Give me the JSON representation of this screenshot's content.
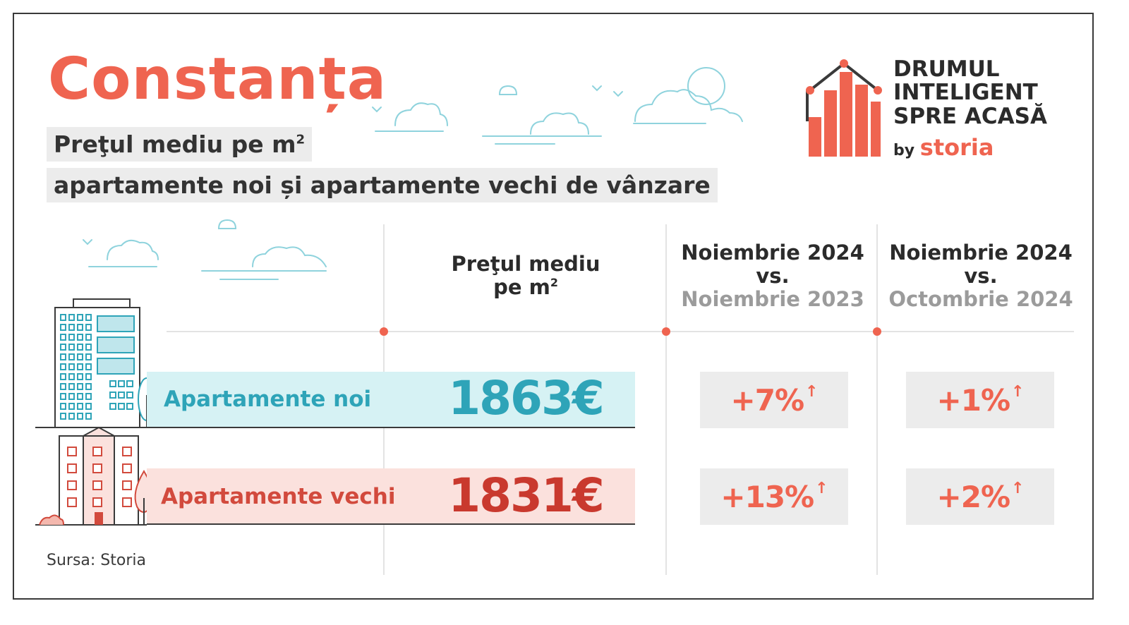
{
  "title": "Constanța",
  "subtitle": {
    "line1_text": "Preţul mediu pe m",
    "line1_sup": "2",
    "line2": "apartamente noi și apartamente vechi de vânzare"
  },
  "logo": {
    "line1": "DRUMUL",
    "line2": "INTELIGENT",
    "line3": "SPRE ACASĂ",
    "by": "by",
    "brand": "storia"
  },
  "columns": {
    "price": {
      "line1": "Preţul mediu",
      "line2_text": "pe m",
      "line2_sup": "2"
    },
    "yoy": {
      "line1": "Noiembrie 2024",
      "line2": "vs.",
      "line3": "Noiembrie 2023"
    },
    "mom": {
      "line1": "Noiembrie 2024",
      "line2": "vs.",
      "line3": "Octombrie 2024"
    }
  },
  "rows": [
    {
      "label": "Apartamente noi",
      "price": "1863€",
      "yoy": "+7%",
      "mom": "+1%"
    },
    {
      "label": "Apartamente vechi",
      "price": "1831€",
      "yoy": "+13%",
      "mom": "+2%"
    }
  ],
  "arrow_glyph": "↑",
  "source": "Sursa: Storia",
  "colors": {
    "accent": "#ef6450",
    "new": "#2ea4b8",
    "new_band": "#d6f2f4",
    "old": "#c9392e",
    "old_band": "#fbe1dd",
    "cell": "#ececec"
  },
  "chart_data": {
    "type": "table",
    "title": "Constanța",
    "columns": [
      "Preţul mediu pe m2",
      "Noiembrie 2024 vs. Noiembrie 2023",
      "Noiembrie 2024 vs. Octombrie 2024"
    ],
    "rows": [
      {
        "category": "Apartamente noi",
        "price_eur_per_m2": 1863,
        "change_yoy_pct": 7,
        "change_mom_pct": 1
      },
      {
        "category": "Apartamente vechi",
        "price_eur_per_m2": 1831,
        "change_yoy_pct": 13,
        "change_mom_pct": 2
      }
    ]
  }
}
